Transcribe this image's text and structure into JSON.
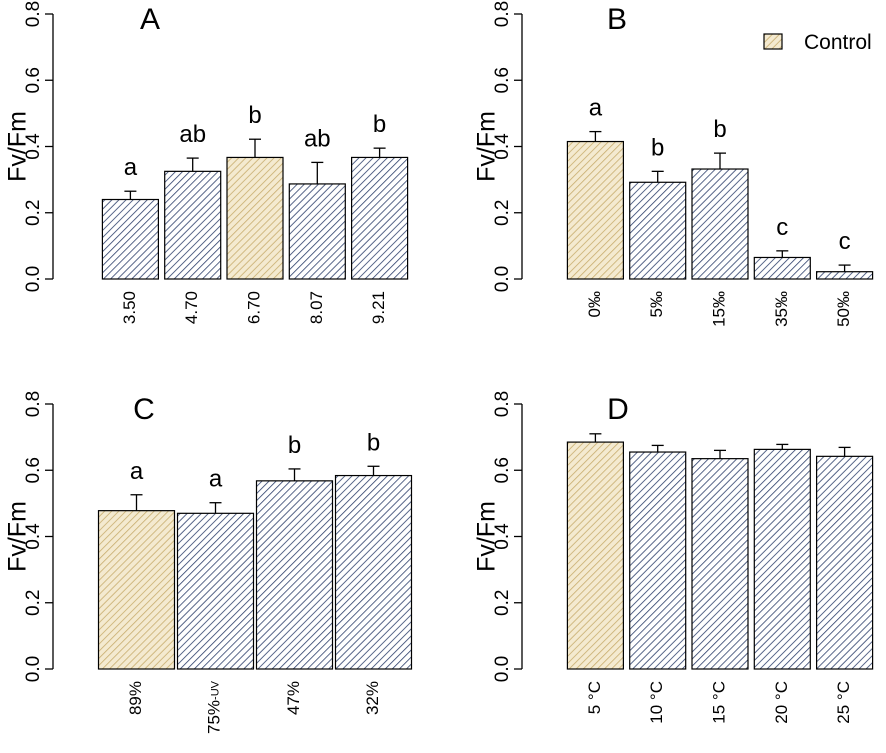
{
  "legend": {
    "label": "Control",
    "position": "top-right of panel B"
  },
  "colors": {
    "control_fill": "#f4ead0",
    "control_hatch": "#c8ad6e",
    "treatment_fill": "#ffffff",
    "treatment_hatch": "#2d3f6b",
    "stroke": "#000000"
  },
  "chart_data": [
    {
      "type": "bar",
      "panel": "A",
      "title": "A",
      "ylabel": "Fv/Fm",
      "xlabel": "",
      "ylim": [
        0,
        0.8
      ],
      "yticks": [
        "0.0",
        "0.2",
        "0.4",
        "0.6",
        "0.8"
      ],
      "categories": [
        "3.50",
        "4.70",
        "6.70",
        "8.07",
        "9.21"
      ],
      "values": [
        0.24,
        0.325,
        0.367,
        0.287,
        0.367
      ],
      "errors": [
        0.025,
        0.04,
        0.055,
        0.065,
        0.028
      ],
      "letters": [
        "a",
        "ab",
        "b",
        "ab",
        "b"
      ],
      "control_index": 2
    },
    {
      "type": "bar",
      "panel": "B",
      "title": "B",
      "ylabel": "Fv/Fm",
      "xlabel": "",
      "ylim": [
        0,
        0.8
      ],
      "yticks": [
        "0.0",
        "0.2",
        "0.4",
        "0.6",
        "0.8"
      ],
      "categories": [
        "0‰",
        "5‰",
        "15‰",
        "35‰",
        "50‰"
      ],
      "values": [
        0.415,
        0.292,
        0.332,
        0.065,
        0.022
      ],
      "errors": [
        0.03,
        0.033,
        0.048,
        0.02,
        0.02
      ],
      "letters": [
        "a",
        "b",
        "b",
        "c",
        "c"
      ],
      "control_index": 0
    },
    {
      "type": "bar",
      "panel": "C",
      "title": "C",
      "ylabel": "Fv/Fm",
      "xlabel": "",
      "ylim": [
        0,
        0.8
      ],
      "yticks": [
        "0.0",
        "0.2",
        "0.4",
        "0.6",
        "0.8"
      ],
      "categories": [
        "89%",
        "75%-UV",
        "47%",
        "32%"
      ],
      "values": [
        0.478,
        0.47,
        0.568,
        0.584
      ],
      "errors": [
        0.048,
        0.032,
        0.036,
        0.028
      ],
      "letters": [
        "a",
        "a",
        "b",
        "b"
      ],
      "control_index": 0
    },
    {
      "type": "bar",
      "panel": "D",
      "title": "D",
      "ylabel": "Fv/Fm",
      "xlabel": "",
      "ylim": [
        0,
        0.8
      ],
      "yticks": [
        "0.0",
        "0.2",
        "0.4",
        "0.6",
        "0.8"
      ],
      "categories": [
        "5 °C",
        "10 °C",
        "15 °C",
        "20 °C",
        "25 °C"
      ],
      "values": [
        0.685,
        0.655,
        0.635,
        0.663,
        0.642
      ],
      "errors": [
        0.025,
        0.02,
        0.025,
        0.015,
        0.027
      ],
      "letters": [
        "",
        "",
        "",
        "",
        ""
      ],
      "control_index": 0
    }
  ]
}
